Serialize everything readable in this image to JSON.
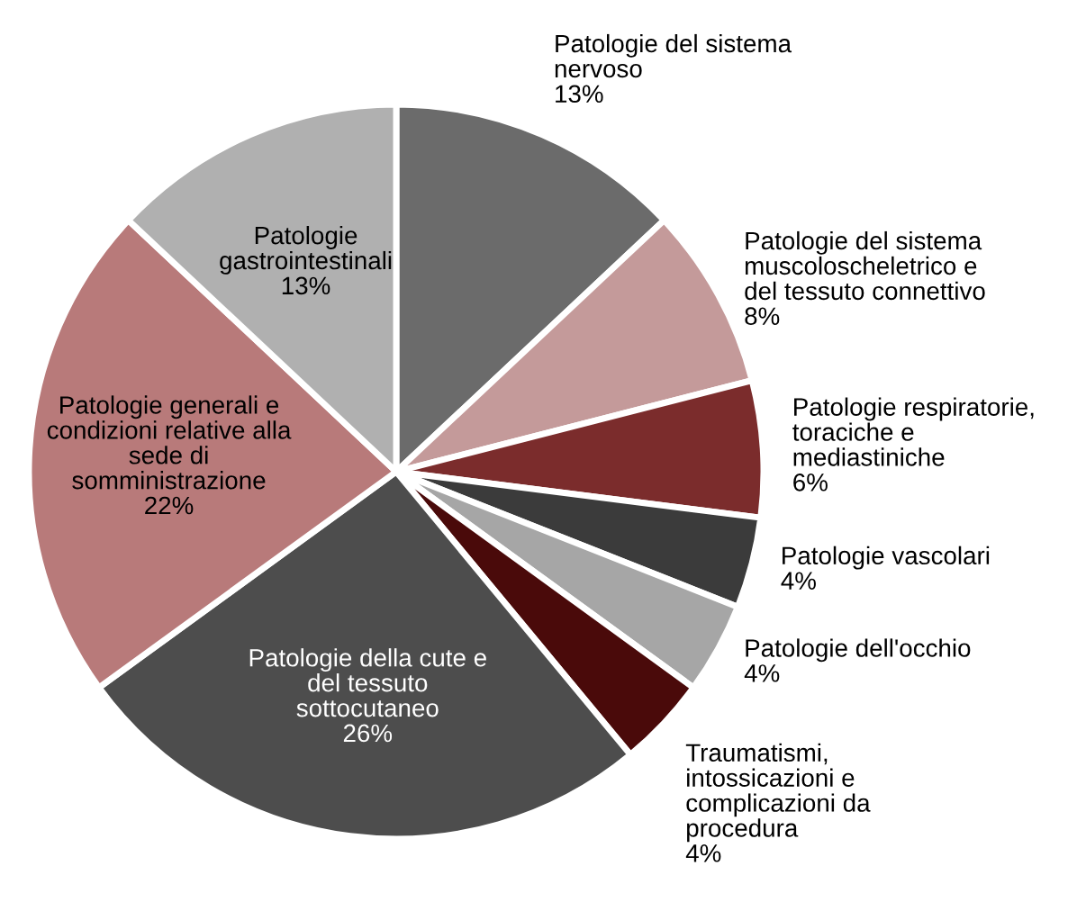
{
  "chart_data": {
    "type": "pie",
    "categories": [
      "Patologie del sistema\nnervoso",
      "Patologie del sistema\nmuscoloscheletrico e\ndel tessuto connettivo",
      "Patologie respiratorie,\ntoraciche e\nmediastiniche",
      "Patologie vascolari",
      "Patologie dell'occhio",
      "Traumatismi,\nintossicazioni e\ncomplicazioni da\nprocedura",
      "Patologie della cute e\ndel tessuto\nsottocutaneo",
      "Patologie generali e\ncondizioni relative alla\nsede di\nsomministrazione",
      "Patologie\ngastrointestinali"
    ],
    "values": [
      13,
      8,
      6,
      4,
      4,
      4,
      26,
      22,
      13
    ],
    "value_labels": [
      "13%",
      "8%",
      "6%",
      "4%",
      "4%",
      "4%",
      "26%",
      "22%",
      "13%"
    ],
    "colors": [
      "#6b6b6b",
      "#c49a9a",
      "#7b2c2c",
      "#3b3b3b",
      "#a6a6a6",
      "#4a0a0a",
      "#4d4d4d",
      "#b87a7a",
      "#b0b0b0"
    ],
    "legend": false
  }
}
